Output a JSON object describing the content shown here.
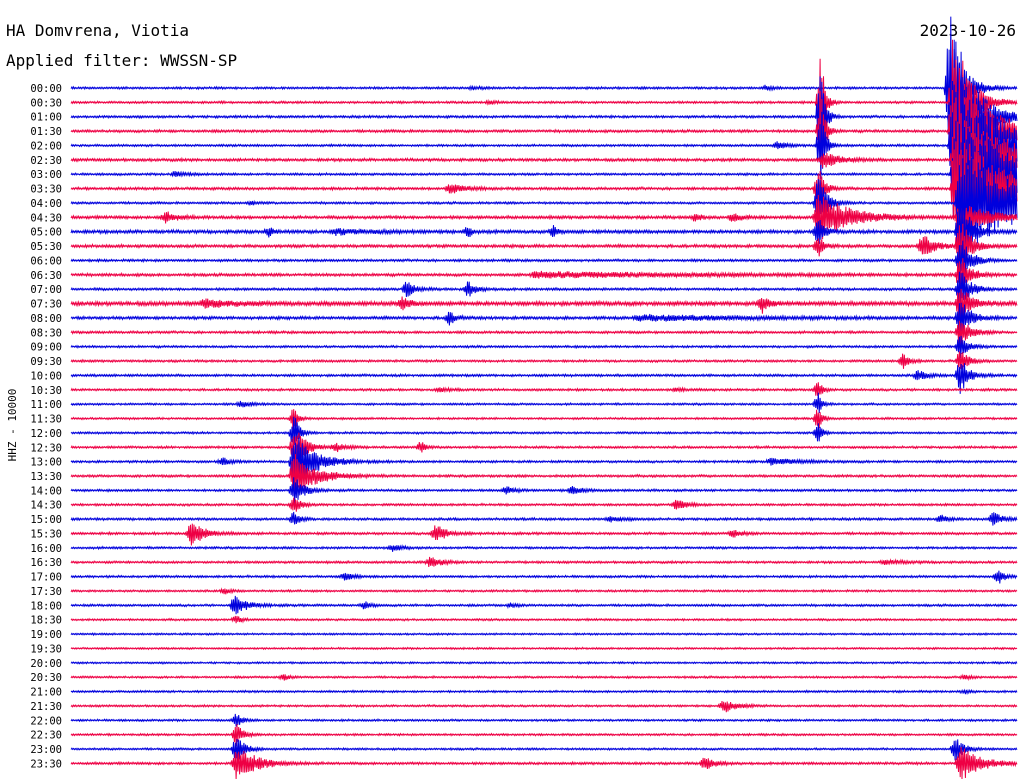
{
  "header": {
    "station": "HA Domvrena, Viotia",
    "date": "2023-10-26",
    "filter": "Applied filter: WWSSN-SP"
  },
  "chart_data": {
    "type": "line",
    "title": "HA Domvrena, Viotia",
    "ylabel": "HHZ - 10000",
    "row_colors": [
      "#0000dd",
      "#ee0044"
    ],
    "rows": [
      {
        "label": "00:00",
        "noise": 1.2,
        "events": [
          {
            "t": 0.425,
            "a": 2,
            "d": 0.006
          },
          {
            "t": 0.735,
            "a": 3,
            "d": 0.006
          },
          {
            "t": 0.929,
            "a": 80,
            "d": 0.012
          }
        ]
      },
      {
        "label": "00:30",
        "noise": 1.2,
        "events": [
          {
            "t": 0.443,
            "a": 2,
            "d": 0.006
          },
          {
            "t": 0.793,
            "a": 55,
            "d": 0.004
          },
          {
            "t": 0.933,
            "a": 80,
            "d": 0.015
          }
        ]
      },
      {
        "label": "01:00",
        "noise": 1.3,
        "events": [
          {
            "t": 0.793,
            "a": 60,
            "d": 0.004
          },
          {
            "t": 0.933,
            "a": 95,
            "d": 0.02
          }
        ]
      },
      {
        "label": "01:30",
        "noise": 1.4,
        "events": [
          {
            "t": 0.793,
            "a": 50,
            "d": 0.004
          },
          {
            "t": 0.933,
            "a": 90,
            "d": 0.03
          }
        ]
      },
      {
        "label": "02:00",
        "noise": 1.2,
        "events": [
          {
            "t": 0.747,
            "a": 4,
            "d": 0.008
          },
          {
            "t": 0.793,
            "a": 45,
            "d": 0.004
          },
          {
            "t": 0.933,
            "a": 90,
            "d": 0.04
          }
        ]
      },
      {
        "label": "02:30",
        "noise": 1.5,
        "events": [
          {
            "t": 0.795,
            "a": 9,
            "d": 0.015
          },
          {
            "t": 0.935,
            "a": 80,
            "d": 0.04
          }
        ]
      },
      {
        "label": "03:00",
        "noise": 1.2,
        "events": [
          {
            "t": 0.11,
            "a": 3,
            "d": 0.01
          },
          {
            "t": 0.935,
            "a": 70,
            "d": 0.05
          }
        ]
      },
      {
        "label": "03:30",
        "noise": 1.4,
        "events": [
          {
            "t": 0.4,
            "a": 5,
            "d": 0.015
          },
          {
            "t": 0.79,
            "a": 25,
            "d": 0.006
          },
          {
            "t": 0.935,
            "a": 60,
            "d": 0.05
          }
        ]
      },
      {
        "label": "04:00",
        "noise": 1.2,
        "events": [
          {
            "t": 0.19,
            "a": 2,
            "d": 0.006
          },
          {
            "t": 0.79,
            "a": 30,
            "d": 0.008
          },
          {
            "t": 0.94,
            "a": 55,
            "d": 0.06
          }
        ]
      },
      {
        "label": "04:30",
        "noise": 1.6,
        "events": [
          {
            "t": 0.1,
            "a": 6,
            "d": 0.012
          },
          {
            "t": 0.66,
            "a": 4,
            "d": 0.006
          },
          {
            "t": 0.7,
            "a": 5,
            "d": 0.008
          },
          {
            "t": 0.79,
            "a": 25,
            "d": 0.03
          },
          {
            "t": 0.94,
            "a": 15,
            "d": 0.03
          }
        ]
      },
      {
        "label": "05:00",
        "noise": 1.8,
        "events": [
          {
            "t": 0.21,
            "a": 5,
            "d": 0.004
          },
          {
            "t": 0.28,
            "a": 3,
            "d": 0.03
          },
          {
            "t": 0.42,
            "a": 7,
            "d": 0.003
          },
          {
            "t": 0.51,
            "a": 7,
            "d": 0.003
          },
          {
            "t": 0.79,
            "a": 15,
            "d": 0.006
          },
          {
            "t": 0.94,
            "a": 40,
            "d": 0.01
          }
        ]
      },
      {
        "label": "05:30",
        "noise": 1.6,
        "events": [
          {
            "t": 0.79,
            "a": 12,
            "d": 0.005
          },
          {
            "t": 0.9,
            "a": 12,
            "d": 0.012
          },
          {
            "t": 0.94,
            "a": 30,
            "d": 0.01
          }
        ]
      },
      {
        "label": "06:00",
        "noise": 1.3,
        "events": [
          {
            "t": 0.94,
            "a": 25,
            "d": 0.01
          }
        ]
      },
      {
        "label": "06:30",
        "noise": 1.5,
        "events": [
          {
            "t": 0.49,
            "a": 3,
            "d": 0.15
          },
          {
            "t": 0.94,
            "a": 20,
            "d": 0.01
          }
        ]
      },
      {
        "label": "07:00",
        "noise": 1.3,
        "events": [
          {
            "t": 0.355,
            "a": 8,
            "d": 0.008
          },
          {
            "t": 0.42,
            "a": 8,
            "d": 0.008
          },
          {
            "t": 0.94,
            "a": 20,
            "d": 0.01
          }
        ]
      },
      {
        "label": "07:30",
        "noise": 2.2,
        "events": [
          {
            "t": 0.14,
            "a": 4,
            "d": 0.03
          },
          {
            "t": 0.35,
            "a": 6,
            "d": 0.008
          },
          {
            "t": 0.73,
            "a": 10,
            "d": 0.006
          },
          {
            "t": 0.94,
            "a": 20,
            "d": 0.01
          }
        ]
      },
      {
        "label": "08:00",
        "noise": 1.6,
        "events": [
          {
            "t": 0.4,
            "a": 7,
            "d": 0.006
          },
          {
            "t": 0.6,
            "a": 3,
            "d": 0.1
          },
          {
            "t": 0.94,
            "a": 20,
            "d": 0.01
          }
        ]
      },
      {
        "label": "08:30",
        "noise": 1.3,
        "events": [
          {
            "t": 0.94,
            "a": 15,
            "d": 0.01
          }
        ]
      },
      {
        "label": "09:00",
        "noise": 1.2,
        "events": [
          {
            "t": 0.94,
            "a": 12,
            "d": 0.008
          }
        ]
      },
      {
        "label": "09:30",
        "noise": 1.2,
        "events": [
          {
            "t": 0.88,
            "a": 8,
            "d": 0.006
          },
          {
            "t": 0.94,
            "a": 12,
            "d": 0.008
          }
        ]
      },
      {
        "label": "10:00",
        "noise": 1.3,
        "events": [
          {
            "t": 0.895,
            "a": 5,
            "d": 0.01
          },
          {
            "t": 0.94,
            "a": 20,
            "d": 0.008
          }
        ]
      },
      {
        "label": "10:30",
        "noise": 1.2,
        "events": [
          {
            "t": 0.39,
            "a": 2,
            "d": 0.01
          },
          {
            "t": 0.64,
            "a": 2,
            "d": 0.01
          },
          {
            "t": 0.79,
            "a": 10,
            "d": 0.004
          }
        ]
      },
      {
        "label": "11:00",
        "noise": 1.1,
        "events": [
          {
            "t": 0.18,
            "a": 3,
            "d": 0.01
          },
          {
            "t": 0.79,
            "a": 12,
            "d": 0.004
          }
        ]
      },
      {
        "label": "11:30",
        "noise": 1.1,
        "events": [
          {
            "t": 0.236,
            "a": 15,
            "d": 0.004
          },
          {
            "t": 0.79,
            "a": 12,
            "d": 0.004
          }
        ]
      },
      {
        "label": "12:00",
        "noise": 1.1,
        "events": [
          {
            "t": 0.236,
            "a": 20,
            "d": 0.005
          },
          {
            "t": 0.79,
            "a": 10,
            "d": 0.004
          }
        ]
      },
      {
        "label": "12:30",
        "noise": 1.2,
        "events": [
          {
            "t": 0.236,
            "a": 25,
            "d": 0.01
          },
          {
            "t": 0.28,
            "a": 4,
            "d": 0.01
          },
          {
            "t": 0.37,
            "a": 7,
            "d": 0.004
          }
        ]
      },
      {
        "label": "13:00",
        "noise": 1.2,
        "events": [
          {
            "t": 0.16,
            "a": 4,
            "d": 0.008
          },
          {
            "t": 0.236,
            "a": 30,
            "d": 0.02
          },
          {
            "t": 0.74,
            "a": 3,
            "d": 0.03
          }
        ]
      },
      {
        "label": "13:30",
        "noise": 1.3,
        "events": [
          {
            "t": 0.236,
            "a": 25,
            "d": 0.02
          }
        ]
      },
      {
        "label": "14:00",
        "noise": 1.2,
        "events": [
          {
            "t": 0.236,
            "a": 15,
            "d": 0.01
          },
          {
            "t": 0.46,
            "a": 4,
            "d": 0.008
          },
          {
            "t": 0.53,
            "a": 4,
            "d": 0.01
          }
        ]
      },
      {
        "label": "14:30",
        "noise": 1.2,
        "events": [
          {
            "t": 0.236,
            "a": 10,
            "d": 0.006
          },
          {
            "t": 0.64,
            "a": 6,
            "d": 0.01
          }
        ]
      },
      {
        "label": "15:00",
        "noise": 1.3,
        "events": [
          {
            "t": 0.236,
            "a": 8,
            "d": 0.005
          },
          {
            "t": 0.57,
            "a": 3,
            "d": 0.01
          },
          {
            "t": 0.92,
            "a": 4,
            "d": 0.006
          },
          {
            "t": 0.975,
            "a": 8,
            "d": 0.008
          }
        ]
      },
      {
        "label": "15:30",
        "noise": 1.3,
        "events": [
          {
            "t": 0.127,
            "a": 15,
            "d": 0.012
          },
          {
            "t": 0.385,
            "a": 10,
            "d": 0.01
          },
          {
            "t": 0.7,
            "a": 4,
            "d": 0.008
          }
        ]
      },
      {
        "label": "16:00",
        "noise": 1.2,
        "events": [
          {
            "t": 0.34,
            "a": 4,
            "d": 0.008
          }
        ]
      },
      {
        "label": "16:30",
        "noise": 1.2,
        "events": [
          {
            "t": 0.38,
            "a": 6,
            "d": 0.01
          },
          {
            "t": 0.86,
            "a": 2,
            "d": 0.02
          }
        ]
      },
      {
        "label": "17:00",
        "noise": 1.2,
        "events": [
          {
            "t": 0.29,
            "a": 4,
            "d": 0.008
          },
          {
            "t": 0.98,
            "a": 8,
            "d": 0.006
          }
        ]
      },
      {
        "label": "17:30",
        "noise": 1.1,
        "events": [
          {
            "t": 0.163,
            "a": 3,
            "d": 0.006
          }
        ]
      },
      {
        "label": "18:00",
        "noise": 1.2,
        "events": [
          {
            "t": 0.173,
            "a": 10,
            "d": 0.012
          },
          {
            "t": 0.31,
            "a": 4,
            "d": 0.006
          },
          {
            "t": 0.465,
            "a": 2,
            "d": 0.006
          }
        ]
      },
      {
        "label": "18:30",
        "noise": 1.1,
        "events": [
          {
            "t": 0.175,
            "a": 4,
            "d": 0.006
          }
        ]
      },
      {
        "label": "19:00",
        "noise": 1.0,
        "events": []
      },
      {
        "label": "19:30",
        "noise": 1.0,
        "events": []
      },
      {
        "label": "20:00",
        "noise": 1.0,
        "events": []
      },
      {
        "label": "20:30",
        "noise": 1.1,
        "events": [
          {
            "t": 0.225,
            "a": 3,
            "d": 0.006
          },
          {
            "t": 0.945,
            "a": 3,
            "d": 0.006
          }
        ]
      },
      {
        "label": "21:00",
        "noise": 1.1,
        "events": [
          {
            "t": 0.945,
            "a": 2,
            "d": 0.006
          }
        ]
      },
      {
        "label": "21:30",
        "noise": 1.1,
        "events": [
          {
            "t": 0.69,
            "a": 7,
            "d": 0.012
          }
        ]
      },
      {
        "label": "22:00",
        "noise": 1.1,
        "events": [
          {
            "t": 0.175,
            "a": 8,
            "d": 0.005
          }
        ]
      },
      {
        "label": "22:30",
        "noise": 1.1,
        "events": [
          {
            "t": 0.175,
            "a": 12,
            "d": 0.006
          }
        ]
      },
      {
        "label": "23:00",
        "noise": 1.1,
        "events": [
          {
            "t": 0.175,
            "a": 15,
            "d": 0.008
          },
          {
            "t": 0.935,
            "a": 12,
            "d": 0.008
          }
        ]
      },
      {
        "label": "23:30",
        "noise": 1.3,
        "events": [
          {
            "t": 0.175,
            "a": 18,
            "d": 0.02
          },
          {
            "t": 0.67,
            "a": 7,
            "d": 0.01
          },
          {
            "t": 0.94,
            "a": 18,
            "d": 0.02
          }
        ]
      }
    ]
  }
}
